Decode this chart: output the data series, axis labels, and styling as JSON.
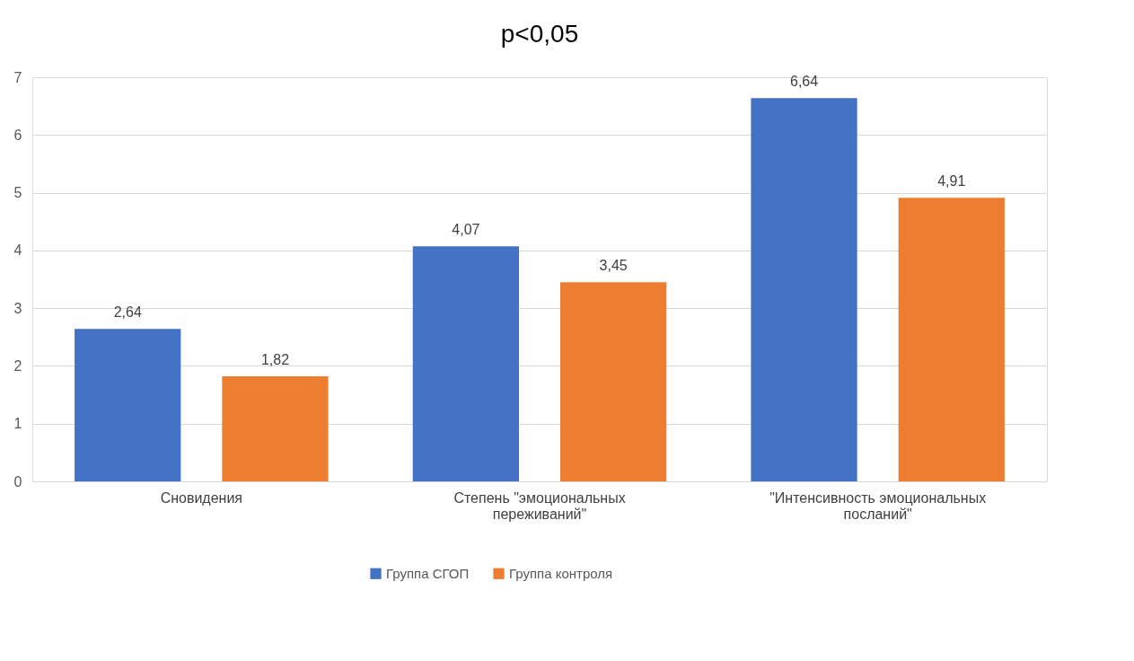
{
  "chart_data": {
    "type": "bar",
    "title": "p<0,05",
    "categories": [
      "Сновидения",
      "Степень \"эмоциональных переживаний\"",
      "\"Интенсивность эмоциональных посланий\""
    ],
    "series": [
      {
        "name": "Группа СГОП",
        "color": "#4472c4",
        "values": [
          2.64,
          4.07,
          6.64
        ],
        "value_labels": [
          "2,64",
          "4,07",
          "6,64"
        ]
      },
      {
        "name": "Группа контроля",
        "color": "#ed7d31",
        "values": [
          1.82,
          3.45,
          4.91
        ],
        "value_labels": [
          "1,82",
          "3,45",
          "4,91"
        ]
      }
    ],
    "ylim": [
      0,
      7
    ],
    "yticks": [
      0,
      1,
      2,
      3,
      4,
      5,
      6,
      7
    ],
    "grid": "y",
    "legend": "bottom"
  }
}
